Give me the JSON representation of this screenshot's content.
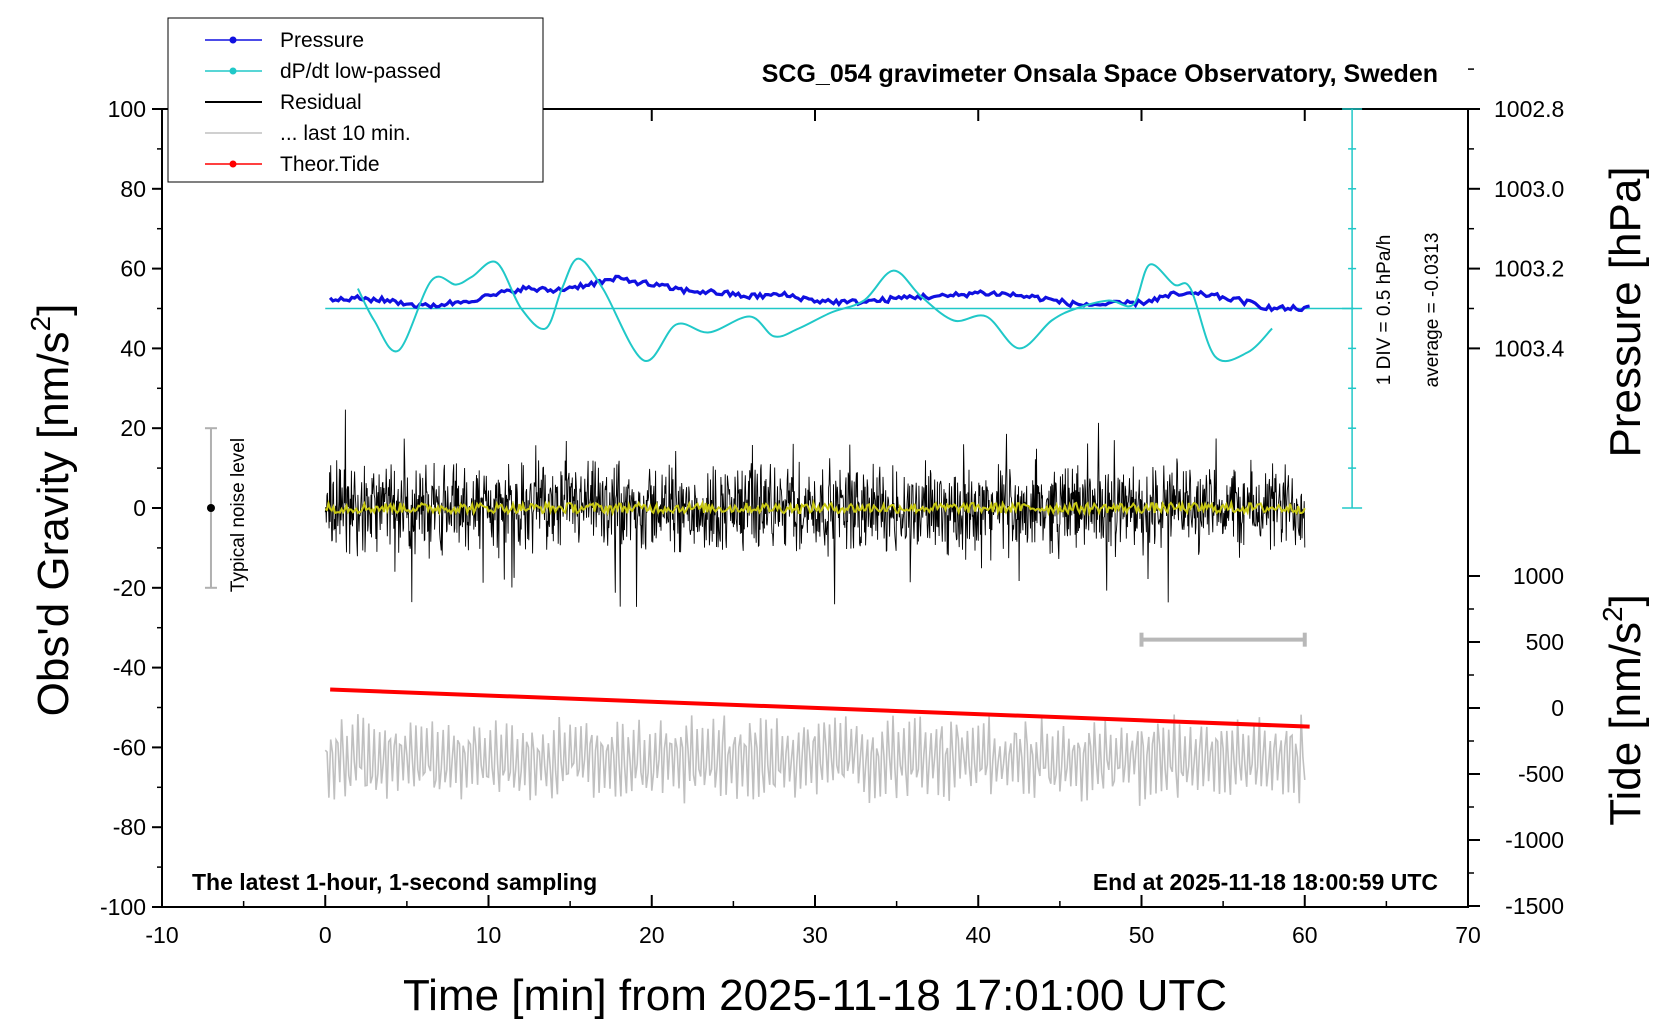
{
  "chart_data": {
    "type": "line",
    "title": "SCG_054 gravimeter Onsala Space Observatory, Sweden",
    "xlabel": "Time [min] from 2025-11-18 17:01:00 UTC",
    "ylabel_left": "Obs'd Gravity [nm/s",
    "ylabel_left_sup": "2",
    "ylabel_left_end": "]",
    "ylabel_pressure": "Pressure [hPa]",
    "ylabel_tide": "Tide [nm/s",
    "ylabel_tide_sup": "2",
    "ylabel_tide_end": "]",
    "xlim": [
      -10,
      70
    ],
    "ylim": [
      -100,
      100
    ],
    "xticks": [
      "-10",
      "0",
      "10",
      "20",
      "30",
      "40",
      "50",
      "60",
      "70"
    ],
    "yticks_left": [
      "100",
      "80",
      "60",
      "40",
      "20",
      "0",
      "-20",
      "-40",
      "-60",
      "-80",
      "-100"
    ],
    "pressure_axis": {
      "ticks": [
        "1003.4",
        "1003.2",
        "1003.0",
        "1002.8"
      ],
      "values": [
        1003.4,
        1003.2,
        1003.0,
        1002.8
      ]
    },
    "tide_axis": {
      "ticks": [
        "1000",
        "500",
        "0",
        "-500",
        "-1000",
        "-1500"
      ],
      "values": [
        1000,
        500,
        0,
        -500,
        -1000,
        -1500
      ]
    },
    "legend": {
      "placement": "top-left",
      "entries": [
        {
          "label": "Pressure",
          "color": "#1010e0",
          "marker": true
        },
        {
          "label": "dP/dt low-passed",
          "color": "#20c8c8",
          "marker": true
        },
        {
          "label": "Residual",
          "color": "#000000",
          "marker": false
        },
        {
          "label": "... last 10 min.",
          "color": "#c0c0c0",
          "marker": false
        },
        {
          "label": "Theor.Tide",
          "color": "#ff0000",
          "marker": true
        }
      ]
    },
    "annotations": {
      "scale_div": "1 DIV = 0.5 hPa/h",
      "average": "average = -0.0313",
      "noise": "Typical noise level",
      "bottom_left": "The latest 1-hour, 1-second sampling",
      "bottom_right": "End at 2025-11-18 18:00:59 UTC"
    },
    "series": [
      {
        "name": "Pressure",
        "color": "#1010e0",
        "x": [
          0.3,
          2,
          4,
          6,
          8,
          10,
          12,
          14,
          16,
          18,
          20,
          22,
          24,
          26,
          28,
          30,
          32,
          34,
          36,
          38,
          40,
          42,
          44,
          46,
          48,
          50,
          52,
          54,
          56,
          58,
          60.3
        ],
        "y": [
          52,
          52.5,
          52,
          50.5,
          51.5,
          53,
          55,
          54.5,
          56,
          57.5,
          56,
          54.5,
          54,
          53,
          53.5,
          52,
          51.5,
          52,
          53,
          53,
          54,
          53.5,
          52.5,
          51,
          51,
          51.5,
          53.5,
          53.5,
          52,
          50,
          50
        ]
      },
      {
        "name": "dP/dt low-passed",
        "color": "#20c8c8",
        "x": [
          2,
          3,
          4.5,
          6.5,
          8,
          9,
          10.5,
          12,
          13.5,
          14.5,
          15.5,
          17,
          19.5,
          21.5,
          23.5,
          26,
          27.5,
          29,
          31,
          33,
          34.8,
          36.5,
          38.5,
          40.5,
          42.5,
          44.5,
          46,
          48,
          49.5,
          50.5,
          52,
          53,
          54.5,
          56.5,
          58
        ],
        "y": [
          55,
          47,
          39.5,
          57,
          56,
          58,
          61.5,
          50,
          45,
          55,
          62.5,
          55,
          37,
          46,
          44,
          48,
          43,
          45,
          49,
          52,
          59.5,
          53,
          47,
          48,
          40,
          47,
          50,
          52,
          51,
          61,
          56,
          55,
          38,
          39,
          45
        ]
      },
      {
        "name": "Theor.Tide",
        "color": "#ff0000",
        "x": [
          0.3,
          60.3
        ],
        "y": [
          -45.5,
          -54.8
        ]
      }
    ],
    "residual": {
      "name": "Residual",
      "x_range": [
        0,
        60
      ],
      "center": 0,
      "amplitude": 9,
      "spikes": 25,
      "color": "#000000",
      "smooth_color": "#c8c814"
    },
    "last10": {
      "name": "... last 10 min.",
      "x_range": [
        0,
        60
      ],
      "center": -63,
      "amplitude": 9,
      "spikes": 25,
      "color": "#c0c0c0"
    },
    "baseline_y": 50,
    "grid": false
  }
}
